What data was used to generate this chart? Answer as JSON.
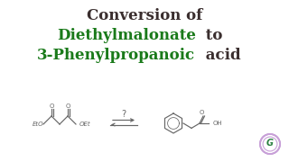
{
  "title_line1": "Conversion of",
  "title_line2_green": "Diethylmalonate",
  "title_line2_black": " to",
  "title_line3_green": "3-Phenylpropanoic",
  "title_line3_black": " acid",
  "bg_color": "#ffffff",
  "title_color_black": "#3a2e2e",
  "title_color_green": "#1a7a1a",
  "struct_color": "#666666",
  "arrow_label": "?",
  "fig_width": 3.2,
  "fig_height": 1.8,
  "dpi": 100,
  "logo_outer": "#c8a0d8",
  "logo_inner": "#9060b8",
  "logo_letter": "#2a8040",
  "logo_letter2": "#5a3080"
}
